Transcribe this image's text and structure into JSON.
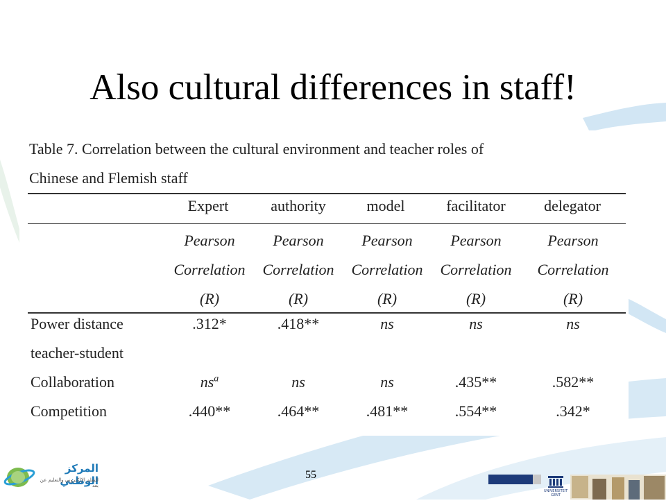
{
  "slide": {
    "title": "Also cultural differences in staff!",
    "page_number": "55"
  },
  "table": {
    "caption_line1": "Table 7. Correlation between the cultural environment and teacher roles of",
    "caption_line2": "Chinese and Flemish staff",
    "columns": [
      "Expert",
      "authority",
      "model",
      "facilitator",
      "delegator"
    ],
    "stat_line1": "Pearson",
    "stat_line2": "Correlation",
    "stat_line3": "(R)",
    "rows": [
      {
        "label": "Power distance",
        "values": [
          ".312*",
          ".418**",
          "ns",
          "ns",
          "ns"
        ]
      },
      {
        "label": "teacher-student",
        "values": [
          "",
          "",
          "",
          "",
          ""
        ]
      },
      {
        "label": "Collaboration",
        "values": [
          "ns",
          "ns",
          "ns",
          ".435**",
          ".582**"
        ]
      },
      {
        "label": "Competition",
        "values": [
          ".440**",
          ".464**",
          ".481**",
          ".554**",
          ".342*"
        ]
      }
    ],
    "superscript_note": "a"
  },
  "logos": {
    "left_arabic": "المركز الوطني",
    "left_arabic_sub": "للتعلم الإلكتروني والتعليم عن بعد",
    "right_name": "UNIVERSITEIT GENT"
  },
  "colors": {
    "swoosh": "#cfe4f3",
    "swoosh_dark": "#a9cfe9",
    "text": "#222222"
  }
}
